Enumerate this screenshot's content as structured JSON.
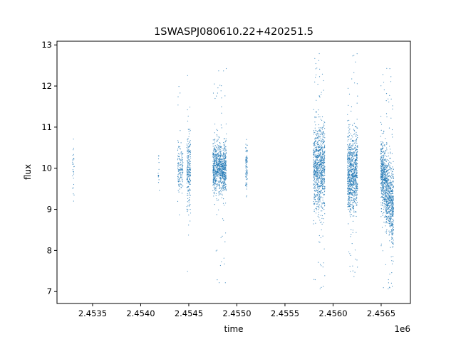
{
  "chart_data": {
    "type": "scatter",
    "title": "1SWASPJ080610.22+420251.5",
    "xlabel": "time",
    "ylabel": "flux",
    "x_offset_label": "1e6",
    "xlim": [
      2453130,
      2456804
    ],
    "ylim": [
      6.71,
      13.09
    ],
    "xticks": [
      2453500,
      2454000,
      2454500,
      2455000,
      2455500,
      2456000,
      2456500
    ],
    "xtick_labels": [
      "2.4535",
      "2.4540",
      "2.4545",
      "2.4550",
      "2.4555",
      "2.4560",
      "2.4565"
    ],
    "yticks": [
      7,
      8,
      9,
      10,
      11,
      12,
      13
    ],
    "ytick_labels": [
      "7",
      "8",
      "9",
      "10",
      "11",
      "12",
      "13"
    ],
    "grid": false,
    "color": "#1f77b4",
    "clusters": [
      {
        "x": [
          2453290,
          2453310
        ],
        "y_center": 10.0,
        "y_spread": 0.35,
        "y_range": [
          9.2,
          11.6
        ],
        "n": 30
      },
      {
        "x": [
          2454180,
          2454195
        ],
        "y_center": 9.9,
        "y_spread": 0.3,
        "y_range": [
          9.1,
          10.3
        ],
        "n": 15
      },
      {
        "x": [
          2454385,
          2454440
        ],
        "y_center": 10.0,
        "y_spread": 0.35,
        "y_range": [
          8.5,
          12.1
        ],
        "n": 140
      },
      {
        "x": [
          2454480,
          2454520
        ],
        "y_center": 9.9,
        "y_spread": 0.45,
        "y_range": [
          7.3,
          12.6
        ],
        "n": 220
      },
      {
        "x": [
          2454750,
          2454890
        ],
        "y_center": 10.0,
        "y_spread": 0.3,
        "y_range": [
          7.2,
          12.5
        ],
        "n": 900
      },
      {
        "x": [
          2455090,
          2455110
        ],
        "y_center": 10.0,
        "y_spread": 0.3,
        "y_range": [
          9.3,
          10.7
        ],
        "n": 80
      },
      {
        "x": [
          2455796,
          2455915
        ],
        "y_center": 10.0,
        "y_spread": 0.5,
        "y_range": [
          7.0,
          12.8
        ],
        "n": 900
      },
      {
        "x": [
          2456150,
          2456255
        ],
        "y_center": 9.9,
        "y_spread": 0.45,
        "y_range": [
          7.2,
          12.8
        ],
        "n": 900
      },
      {
        "x": [
          2456495,
          2456630
        ],
        "y_center_start": 10.0,
        "y_center_end": 8.9,
        "y_spread": 0.45,
        "y_range": [
          7.0,
          12.6
        ],
        "n": 1100
      }
    ]
  }
}
